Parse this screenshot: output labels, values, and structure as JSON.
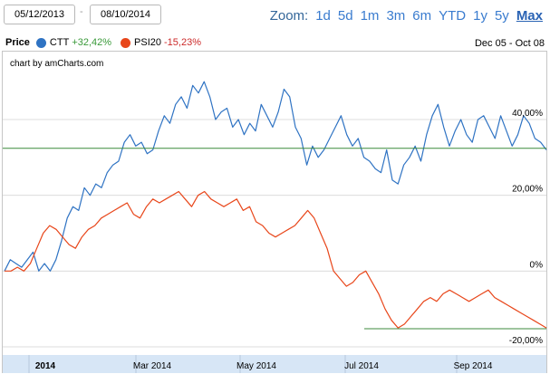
{
  "range_selector": {
    "from": "05/12/2013",
    "separator": "-",
    "to": "08/10/2014"
  },
  "zoom": {
    "label": "Zoom:",
    "buttons": [
      "1d",
      "5d",
      "1m",
      "3m",
      "6m",
      "YTD",
      "1y",
      "5y",
      "Max"
    ],
    "active": "Max"
  },
  "legend": {
    "title": "Price",
    "items": [
      {
        "name": "CTT",
        "value": "+32,42%",
        "color": "#2f73c3",
        "value_color": "#3a9a3a"
      },
      {
        "name": "PSI20",
        "value": "-15,23%",
        "color": "#e8461a",
        "value_color": "#cc2a2a"
      }
    ]
  },
  "date_range_label": "Dec 05 - Oct 08",
  "credit": "chart by amCharts.com",
  "colors": {
    "ctt": "#2f73c3",
    "psi20": "#e8461a",
    "reference_line": "#3c8a3c",
    "gridline": "#dcdcdc",
    "axis_band": "#d7e6f6"
  },
  "chart_data": {
    "type": "line",
    "x_ticks": [
      "2014",
      "Mar 2014",
      "May 2014",
      "Jul 2014",
      "Sep 2014"
    ],
    "y_ticks": [
      "40,00%",
      "20,00%",
      "0%",
      "-20,00%"
    ],
    "ylim": [
      -20,
      40
    ],
    "reference_lines": [
      {
        "series": "CTT",
        "value": 32.42
      },
      {
        "series": "PSI20",
        "value": -15.23
      }
    ],
    "series": [
      {
        "name": "CTT",
        "values": [
          0,
          3,
          2,
          1,
          3,
          5,
          0,
          2,
          0,
          3,
          8,
          14,
          17,
          16,
          22,
          20,
          23,
          22,
          26,
          28,
          29,
          34,
          36,
          33,
          34,
          31,
          32,
          37,
          41,
          39,
          44,
          46,
          43,
          49,
          47,
          50,
          46,
          40,
          42,
          43,
          38,
          40,
          36,
          39,
          37,
          44,
          41,
          38,
          42,
          48,
          46,
          38,
          35,
          28,
          33,
          30,
          32,
          35,
          38,
          41,
          36,
          33,
          35,
          30,
          29,
          27,
          26,
          32,
          24,
          23,
          28,
          30,
          33,
          29,
          36,
          41,
          44,
          38,
          33,
          37,
          40,
          36,
          34,
          40,
          41,
          38,
          35,
          41,
          37,
          33,
          36,
          41,
          39,
          35,
          34,
          32
        ]
      },
      {
        "name": "PSI20",
        "values": [
          0,
          0,
          1,
          0,
          2,
          6,
          10,
          12,
          11,
          9,
          7,
          6,
          9,
          11,
          12,
          14,
          15,
          16,
          17,
          18,
          15,
          14,
          17,
          19,
          18,
          19,
          20,
          21,
          19,
          17,
          20,
          21,
          19,
          18,
          17,
          18,
          19,
          16,
          17,
          13,
          12,
          10,
          9,
          10,
          11,
          12,
          14,
          16,
          14,
          10,
          6,
          0,
          -2,
          -4,
          -3,
          -1,
          0,
          -3,
          -6,
          -10,
          -13,
          -15,
          -14,
          -12,
          -10,
          -8,
          -7,
          -8,
          -6,
          -5,
          -6,
          -7,
          -8,
          -7,
          -6,
          -5,
          -7,
          -8,
          -9,
          -10,
          -11,
          -12,
          -13,
          -14,
          -15
        ]
      }
    ]
  }
}
